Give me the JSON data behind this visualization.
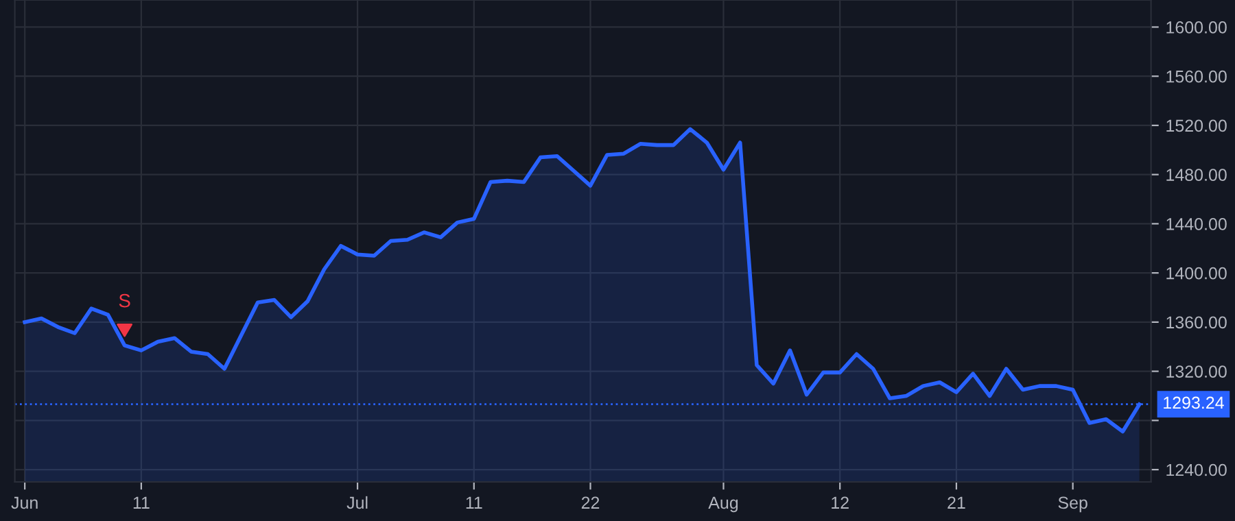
{
  "chart_data": {
    "type": "area",
    "categories": [
      "Jun",
      null,
      null,
      null,
      null,
      null,
      null,
      "11",
      null,
      null,
      null,
      null,
      null,
      null,
      null,
      null,
      null,
      null,
      null,
      null,
      "Jul",
      null,
      null,
      null,
      null,
      null,
      null,
      "11",
      null,
      null,
      null,
      null,
      null,
      null,
      "22",
      null,
      null,
      null,
      null,
      null,
      null,
      null,
      "Aug",
      null,
      null,
      null,
      null,
      null,
      null,
      "12",
      null,
      null,
      null,
      null,
      null,
      null,
      "21",
      null,
      null,
      null,
      null,
      null,
      null,
      "Sep",
      null,
      null,
      null,
      null
    ],
    "series": [
      {
        "color": "#2962ff",
        "values": [
          1360,
          1363,
          1356,
          1351,
          1371,
          1366,
          1341,
          1337,
          1344,
          1347,
          1336,
          1334,
          1322,
          1349,
          1376,
          1378,
          1364,
          1377,
          1403,
          1422,
          1415,
          1414,
          1426,
          1427,
          1433,
          1429,
          1441,
          1444,
          1474,
          1475,
          1474,
          1494,
          1495,
          1483,
          1471,
          1496,
          1497,
          1505,
          1504,
          1504,
          1517,
          1506,
          1484,
          1506,
          1325,
          1310,
          1337,
          1301,
          1319,
          1319,
          1334,
          1322,
          1298,
          1300,
          1308,
          1311,
          1303,
          1318,
          1300,
          1322,
          1305,
          1308,
          1308,
          1305,
          1278,
          1281,
          1271,
          1293
        ]
      }
    ],
    "ylim": [
      1230,
      1622
    ],
    "yticks": [
      {
        "value": 1240,
        "label": "1240.00"
      },
      {
        "value": 1280,
        "label": null
      },
      {
        "value": 1320,
        "label": "1320.00"
      },
      {
        "value": 1360,
        "label": "1360.00"
      },
      {
        "value": 1400,
        "label": "1400.00"
      },
      {
        "value": 1440,
        "label": "1440.00"
      },
      {
        "value": 1480,
        "label": "1480.00"
      },
      {
        "value": 1520,
        "label": "1520.00"
      },
      {
        "value": 1560,
        "label": "1560.00"
      },
      {
        "value": 1600,
        "label": "1600.00"
      }
    ],
    "ref_lines": [
      {
        "axis": "y",
        "value": 1293.24,
        "label": "1293.24",
        "color": "#2962ff",
        "line_style": "dotted"
      }
    ],
    "annotations": [
      {
        "text": "S",
        "y": 1341
      }
    ],
    "grid": true,
    "line_style": "solid",
    "marker": "none"
  }
}
